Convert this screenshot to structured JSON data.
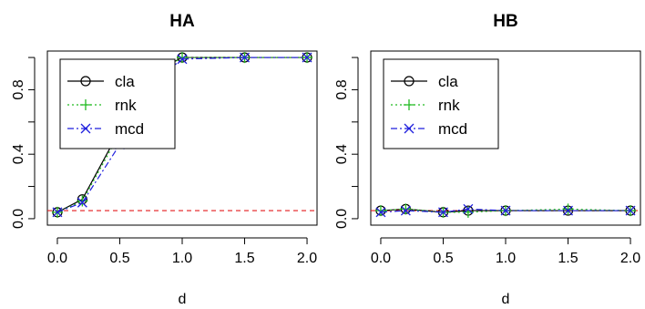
{
  "chart_data": [
    {
      "type": "line",
      "title": "HA",
      "xlabel": "d",
      "ylabel": "",
      "xlim": [
        0,
        2
      ],
      "ylim": [
        0,
        1
      ],
      "xticks": [
        "0.0",
        "0.5",
        "1.0",
        "1.5",
        "2.0"
      ],
      "yticks": [
        "0.0",
        "0.4",
        "0.8"
      ],
      "reference_line": {
        "y": 0.05,
        "color": "#e41a1c",
        "style": "dashed"
      },
      "legend": {
        "position": "top-left",
        "entries": [
          "cla",
          "rnk",
          "mcd"
        ]
      },
      "x": [
        0,
        0.2,
        0.5,
        0.7,
        1.0,
        1.5,
        2.0
      ],
      "series": [
        {
          "name": "cla",
          "marker": "circle",
          "color": "#000000",
          "style": "solid",
          "values": [
            0.04,
            0.12,
            0.55,
            0.88,
            1.0,
            1.0,
            1.0
          ]
        },
        {
          "name": "rnk",
          "marker": "plus",
          "color": "#22bb22",
          "style": "dotted",
          "values": [
            0.04,
            0.11,
            0.53,
            0.86,
            1.0,
            1.0,
            1.0
          ]
        },
        {
          "name": "mcd",
          "marker": "cross",
          "color": "#1f1fdd",
          "style": "dashdot",
          "values": [
            0.04,
            0.1,
            0.46,
            0.81,
            0.99,
            1.0,
            1.0
          ]
        }
      ]
    },
    {
      "type": "line",
      "title": "HB",
      "xlabel": "d",
      "ylabel": "",
      "xlim": [
        0,
        2
      ],
      "ylim": [
        0,
        1
      ],
      "xticks": [
        "0.0",
        "0.5",
        "1.0",
        "1.5",
        "2.0"
      ],
      "yticks": [
        "0.0",
        "0.4",
        "0.8"
      ],
      "reference_line": {
        "y": 0.05,
        "color": "#e41a1c",
        "style": "dashed"
      },
      "legend": {
        "position": "top-left",
        "entries": [
          "cla",
          "rnk",
          "mcd"
        ]
      },
      "x": [
        0,
        0.2,
        0.5,
        0.7,
        1.0,
        1.5,
        2.0
      ],
      "series": [
        {
          "name": "cla",
          "marker": "circle",
          "color": "#000000",
          "style": "solid",
          "values": [
            0.05,
            0.06,
            0.04,
            0.05,
            0.05,
            0.05,
            0.05
          ]
        },
        {
          "name": "rnk",
          "marker": "plus",
          "color": "#22bb22",
          "style": "dotted",
          "values": [
            0.05,
            0.06,
            0.04,
            0.04,
            0.05,
            0.06,
            0.05
          ]
        },
        {
          "name": "mcd",
          "marker": "cross",
          "color": "#1f1fdd",
          "style": "dashdot",
          "values": [
            0.04,
            0.05,
            0.04,
            0.06,
            0.05,
            0.05,
            0.05
          ]
        }
      ]
    }
  ]
}
